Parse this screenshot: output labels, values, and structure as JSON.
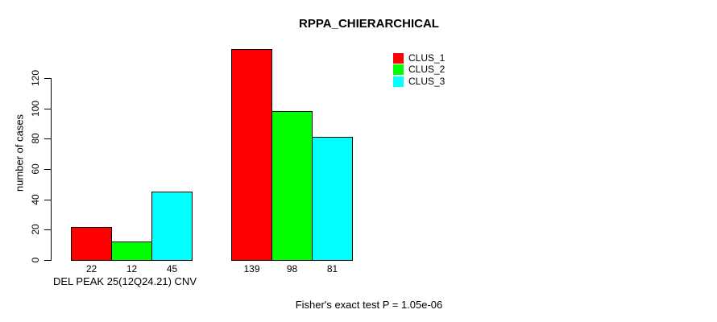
{
  "title": "RPPA_CHIERARCHICAL",
  "legend": {
    "position": "top-right",
    "items": [
      {
        "label": "CLUS_1",
        "color": "#ff0000"
      },
      {
        "label": "CLUS_2",
        "color": "#00ff00"
      },
      {
        "label": "CLUS_3",
        "color": "#00ffff"
      }
    ]
  },
  "chart_data": {
    "type": "bar",
    "title": "RPPA_CHIERARCHICAL",
    "xlabel": "DEL PEAK 25(12Q24.21) CNV",
    "ylabel": "number of cases",
    "annotation": "Fisher's exact test P = 1.05e-06",
    "grid": false,
    "background": "#ffffff",
    "axis_color": "#000000",
    "yticks": [
      0,
      20,
      40,
      60,
      80,
      100,
      120
    ],
    "ylim": [
      0,
      139
    ],
    "num_groups": 2,
    "series": [
      {
        "name": "CLUS_1",
        "color": "#ff0000",
        "values": [
          22,
          139
        ]
      },
      {
        "name": "CLUS_2",
        "color": "#00ff00",
        "values": [
          12,
          98
        ]
      },
      {
        "name": "CLUS_3",
        "color": "#00ffff",
        "values": [
          45,
          81
        ]
      }
    ],
    "bar_value_labels": [
      [
        22,
        12,
        45
      ],
      [
        139,
        98,
        81
      ]
    ]
  }
}
